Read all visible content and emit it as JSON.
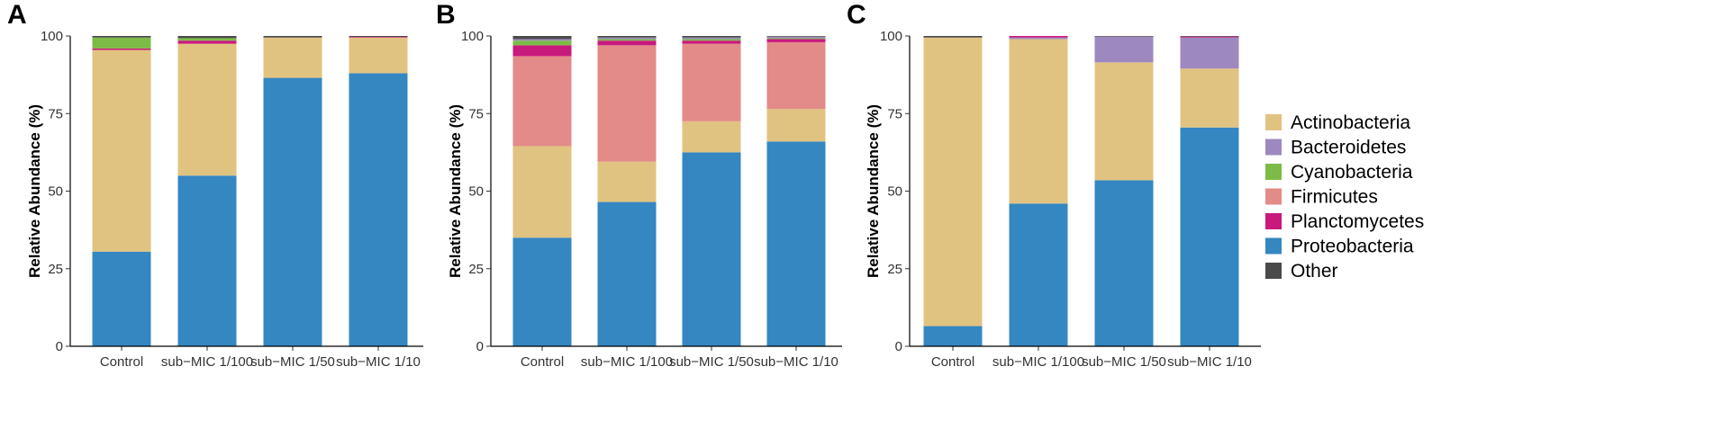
{
  "chart_data": [
    {
      "type": "bar",
      "stacked": true,
      "panel_label": "A",
      "ylabel": "Relative Abundance (%)",
      "xlabel": "",
      "ylim": [
        0,
        100
      ],
      "yticks": [
        0,
        25,
        50,
        75,
        100
      ],
      "categories": [
        "Control",
        "sub−MIC 1/100",
        "sub−MIC 1/50",
        "sub−MIC 1/10"
      ],
      "series": [
        {
          "name": "Proteobacteria",
          "values": [
            30.5,
            55.0,
            86.5,
            88.0
          ]
        },
        {
          "name": "Actinobacteria",
          "values": [
            65.0,
            42.5,
            13.0,
            11.5
          ]
        },
        {
          "name": "Planctomycetes",
          "values": [
            0.5,
            1.0,
            0.0,
            0.2
          ]
        },
        {
          "name": "Firmicutes",
          "values": [
            0.0,
            0.0,
            0.0,
            0.0
          ]
        },
        {
          "name": "Cyanobacteria",
          "values": [
            3.5,
            0.8,
            0.0,
            0.0
          ]
        },
        {
          "name": "Bacteroidetes",
          "values": [
            0.0,
            0.0,
            0.0,
            0.0
          ]
        },
        {
          "name": "Other",
          "values": [
            0.5,
            0.7,
            0.5,
            0.3
          ]
        }
      ]
    },
    {
      "type": "bar",
      "stacked": true,
      "panel_label": "B",
      "ylabel": "Relative Abundance (%)",
      "xlabel": "",
      "ylim": [
        0,
        100
      ],
      "yticks": [
        0,
        25,
        50,
        75,
        100
      ],
      "categories": [
        "Control",
        "sub−MIC 1/100",
        "sub−MIC 1/50",
        "sub−MIC 1/10"
      ],
      "series": [
        {
          "name": "Proteobacteria",
          "values": [
            35.0,
            46.5,
            62.5,
            66.0
          ]
        },
        {
          "name": "Actinobacteria",
          "values": [
            29.5,
            13.0,
            10.0,
            10.5
          ]
        },
        {
          "name": "Firmicutes",
          "values": [
            29.0,
            37.5,
            25.0,
            21.5
          ]
        },
        {
          "name": "Planctomycetes",
          "values": [
            3.5,
            1.5,
            1.0,
            1.0
          ]
        },
        {
          "name": "Cyanobacteria",
          "values": [
            1.5,
            0.5,
            0.5,
            0.3
          ]
        },
        {
          "name": "Bacteroidetes",
          "values": [
            0.5,
            0.5,
            0.5,
            0.5
          ]
        },
        {
          "name": "Other",
          "values": [
            1.0,
            0.5,
            0.5,
            0.2
          ]
        }
      ]
    },
    {
      "type": "bar",
      "stacked": true,
      "panel_label": "C",
      "ylabel": "Relative Abundance (%)",
      "xlabel": "",
      "ylim": [
        0,
        100
      ],
      "yticks": [
        0,
        25,
        50,
        75,
        100
      ],
      "categories": [
        "Control",
        "sub−MIC 1/100",
        "sub−MIC 1/50",
        "sub−MIC 1/10"
      ],
      "series": [
        {
          "name": "Proteobacteria",
          "values": [
            6.5,
            46.0,
            53.5,
            70.5
          ]
        },
        {
          "name": "Actinobacteria",
          "values": [
            93.0,
            53.0,
            38.0,
            19.0
          ]
        },
        {
          "name": "Bacteroidetes",
          "values": [
            0.0,
            0.5,
            8.3,
            10.0
          ]
        },
        {
          "name": "Planctomycetes",
          "values": [
            0.0,
            0.5,
            0.0,
            0.3
          ]
        },
        {
          "name": "Firmicutes",
          "values": [
            0.0,
            0.0,
            0.0,
            0.0
          ]
        },
        {
          "name": "Cyanobacteria",
          "values": [
            0.0,
            0.0,
            0.0,
            0.0
          ]
        },
        {
          "name": "Other",
          "values": [
            0.5,
            0.0,
            0.2,
            0.2
          ]
        }
      ]
    }
  ],
  "legend": {
    "position": "right",
    "items": [
      {
        "name": "Actinobacteria",
        "color": "#e1c381"
      },
      {
        "name": "Bacteroidetes",
        "color": "#9d88bf"
      },
      {
        "name": "Cyanobacteria",
        "color": "#7cbb45"
      },
      {
        "name": "Firmicutes",
        "color": "#e28b89"
      },
      {
        "name": "Planctomycetes",
        "color": "#c8197d"
      },
      {
        "name": "Proteobacteria",
        "color": "#3587c1"
      },
      {
        "name": "Other",
        "color": "#4a4a4a"
      }
    ]
  }
}
